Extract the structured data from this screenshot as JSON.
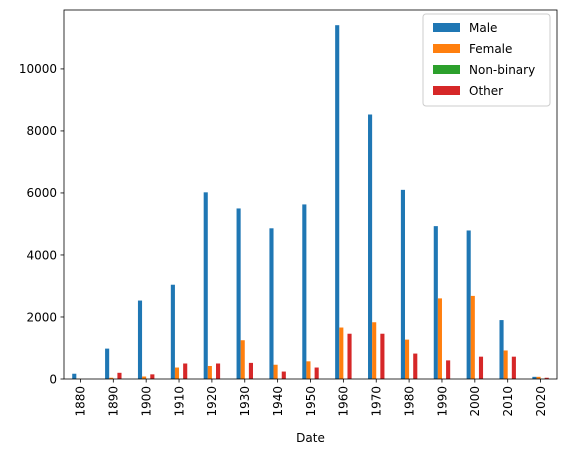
{
  "chart_data": {
    "type": "bar",
    "xlabel": "Date",
    "ylabel": "",
    "title": "",
    "ylim": [
      0,
      11900
    ],
    "yticks": [
      0,
      2000,
      4000,
      6000,
      8000,
      10000
    ],
    "legend_position": "top-right",
    "grid": false,
    "categories": [
      "1880",
      "1890",
      "1900",
      "1910",
      "1920",
      "1930",
      "1940",
      "1950",
      "1960",
      "1970",
      "1980",
      "1990",
      "2000",
      "2010",
      "2020"
    ],
    "series": [
      {
        "name": "Male",
        "color": "#1f77b4",
        "values": [
          170,
          980,
          2530,
          3040,
          6020,
          5500,
          4860,
          5630,
          11410,
          8530,
          6100,
          4930,
          4790,
          1900,
          70
        ]
      },
      {
        "name": "Female",
        "color": "#ff7f0e",
        "values": [
          10,
          40,
          80,
          370,
          420,
          1250,
          460,
          570,
          1660,
          1830,
          1270,
          2600,
          2680,
          920,
          70
        ]
      },
      {
        "name": "Non-binary",
        "color": "#2ca02c",
        "values": [
          0,
          0,
          0,
          0,
          0,
          0,
          0,
          0,
          0,
          0,
          0,
          0,
          0,
          0,
          5
        ]
      },
      {
        "name": "Other",
        "color": "#d62728",
        "values": [
          0,
          200,
          150,
          500,
          500,
          520,
          240,
          370,
          1460,
          1460,
          820,
          600,
          720,
          720,
          40
        ]
      }
    ]
  }
}
